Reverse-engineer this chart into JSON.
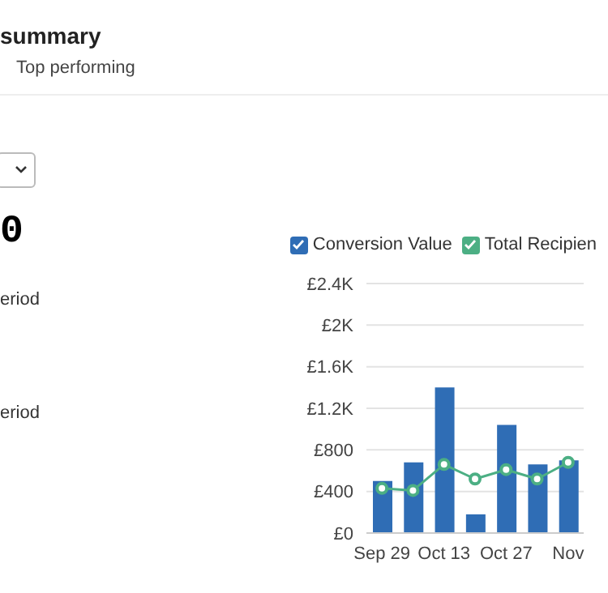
{
  "chart_data": {
    "type": "bar",
    "title": "summary",
    "subtitle": "Top performing",
    "annotations": [
      "0",
      "eriod",
      "eriod"
    ],
    "categories": [
      "Sep 29",
      null,
      "Oct 13",
      null,
      "Oct 27",
      null,
      "Nov"
    ],
    "series": [
      {
        "name": "Conversion Value",
        "color": "#2f6db5",
        "values": [
          500,
          680,
          1400,
          180,
          1040,
          660,
          700
        ]
      },
      {
        "name": "Total Recipien",
        "type": "line",
        "color": "#4caf84",
        "values": [
          430,
          410,
          660,
          520,
          610,
          520,
          680
        ]
      }
    ],
    "ylim": [
      0,
      2400
    ],
    "yticks": [
      {
        "value": 0,
        "label": "£0"
      },
      {
        "value": 400,
        "label": "£400"
      },
      {
        "value": 800,
        "label": "£800"
      },
      {
        "value": 1200,
        "label": "£1.2K"
      },
      {
        "value": 1600,
        "label": "£1.6K"
      },
      {
        "value": 2000,
        "label": "£2K"
      },
      {
        "value": 2400,
        "label": "£2.4K"
      }
    ],
    "grid": "y",
    "legend": "top",
    "marker": "circle"
  }
}
